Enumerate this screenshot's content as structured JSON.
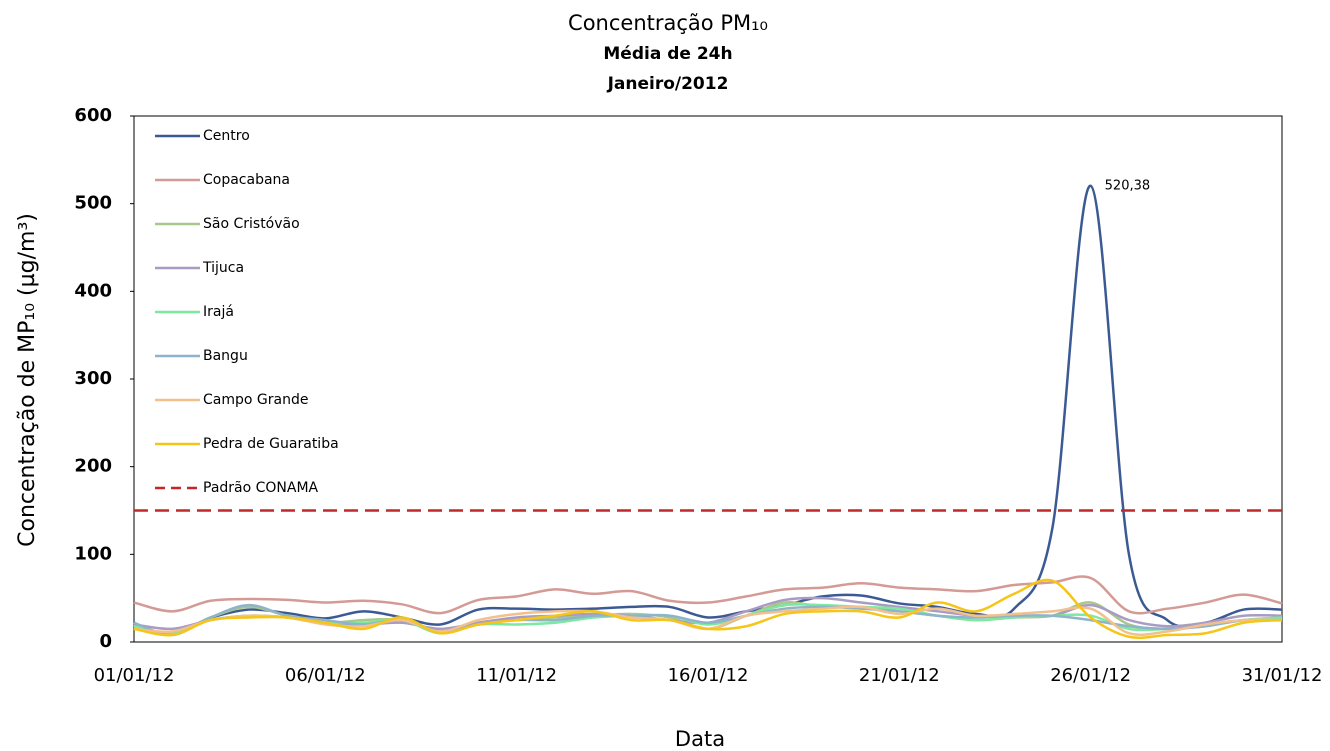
{
  "chart_data": {
    "type": "line",
    "title": "Concentração PM₁₀",
    "subtitles": [
      "Média de 24h",
      "Janeiro/2012"
    ],
    "xlabel": "Data",
    "ylabel": "Concentração de MP₁₀ (µg/m³)",
    "categories": [
      "01/01/12",
      null,
      null,
      null,
      null,
      "06/01/12",
      null,
      null,
      null,
      null,
      "11/01/12",
      null,
      null,
      null,
      null,
      "16/01/12",
      null,
      null,
      null,
      null,
      "21/01/12",
      null,
      null,
      null,
      null,
      "26/01/12",
      null,
      null,
      null,
      null,
      "31/01/12"
    ],
    "ylim": [
      0,
      600
    ],
    "yticks": [
      0,
      100,
      200,
      300,
      400,
      500,
      600
    ],
    "legend": "upper-left",
    "series": [
      {
        "name": "Centro",
        "color": "#3b5a94",
        "values": [
          null,
          null,
          28,
          37,
          33,
          27,
          35,
          28,
          20,
          37,
          38,
          37,
          38,
          40,
          40,
          28,
          35,
          42,
          52,
          53,
          44,
          40,
          32,
          38,
          130,
          520.38,
          100,
          25,
          22,
          37,
          37
        ],
        "value_labels": [
          null,
          null,
          null,
          null,
          null,
          null,
          null,
          null,
          null,
          null,
          null,
          null,
          null,
          null,
          null,
          null,
          null,
          null,
          null,
          null,
          null,
          null,
          null,
          null,
          null,
          "520,38",
          null,
          null,
          null,
          null,
          null
        ]
      },
      {
        "name": "Copacabana",
        "color": "#d49a96",
        "values": [
          45,
          35,
          47,
          49,
          48,
          45,
          47,
          43,
          33,
          48,
          52,
          60,
          55,
          58,
          47,
          45,
          52,
          60,
          62,
          67,
          62,
          60,
          58,
          65,
          68,
          73,
          35,
          38,
          45,
          54,
          44
        ]
      },
      {
        "name": "São Cristóvão",
        "color": "#a8c88a",
        "values": [
          20,
          10,
          28,
          40,
          30,
          22,
          25,
          25,
          12,
          22,
          25,
          28,
          30,
          32,
          28,
          15,
          30,
          45,
          40,
          40,
          35,
          30,
          25,
          28,
          30,
          45,
          20,
          15,
          20,
          25,
          28
        ]
      },
      {
        "name": "Tijuca",
        "color": "#a99bc4",
        "values": [
          20,
          15,
          25,
          30,
          28,
          22,
          20,
          22,
          15,
          22,
          28,
          30,
          32,
          30,
          25,
          22,
          35,
          48,
          50,
          45,
          40,
          35,
          30,
          30,
          30,
          42,
          25,
          18,
          22,
          30,
          30
        ]
      },
      {
        "name": "Irajá",
        "color": "#7de8a0",
        "values": [
          18,
          10,
          25,
          30,
          28,
          22,
          22,
          25,
          10,
          20,
          20,
          22,
          28,
          30,
          30,
          20,
          30,
          42,
          42,
          40,
          38,
          30,
          25,
          28,
          30,
          30,
          15,
          15,
          18,
          25,
          28
        ]
      },
      {
        "name": "Bangu",
        "color": "#8fb3c9",
        "values": [
          22,
          8,
          28,
          42,
          30,
          25,
          20,
          25,
          12,
          20,
          25,
          25,
          30,
          30,
          30,
          22,
          30,
          38,
          40,
          38,
          35,
          30,
          28,
          30,
          30,
          25,
          18,
          15,
          18,
          25,
          25
        ]
      },
      {
        "name": "Campo Grande",
        "color": "#f2c08c",
        "values": [
          15,
          12,
          25,
          30,
          28,
          20,
          18,
          25,
          12,
          25,
          32,
          35,
          35,
          28,
          25,
          15,
          30,
          35,
          38,
          40,
          32,
          38,
          30,
          32,
          35,
          38,
          10,
          12,
          20,
          25,
          25
        ]
      },
      {
        "name": "Pedra de Guaratiba",
        "color": "#f5c518",
        "values": [
          15,
          8,
          25,
          28,
          28,
          22,
          15,
          28,
          10,
          20,
          25,
          30,
          35,
          25,
          25,
          15,
          18,
          32,
          35,
          35,
          28,
          45,
          35,
          55,
          70,
          28,
          6,
          8,
          10,
          22,
          25
        ]
      },
      {
        "name": "Padrão CONAMA",
        "color": "#c0282a",
        "dash": true,
        "values": [
          150,
          150,
          150,
          150,
          150,
          150,
          150,
          150,
          150,
          150,
          150,
          150,
          150,
          150,
          150,
          150,
          150,
          150,
          150,
          150,
          150,
          150,
          150,
          150,
          150,
          150,
          150,
          150,
          150,
          150,
          150
        ]
      }
    ]
  }
}
